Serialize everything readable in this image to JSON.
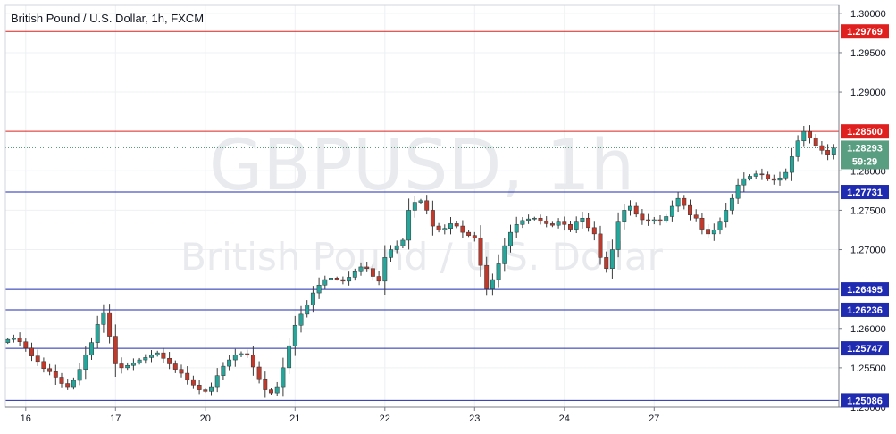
{
  "chart_data": {
    "type": "candlestick",
    "title": "British Pound / U.S. Dollar, 1h, FXCM",
    "watermark": {
      "symbol": "GBPUSD, 1h",
      "description": "British Pound / U.S. Dollar"
    },
    "ylim": [
      1.25,
      1.301
    ],
    "y_ticks": [
      "1.30000",
      "1.29500",
      "1.29000",
      "1.28000",
      "1.27500",
      "1.27000",
      "1.26000",
      "1.25500",
      "1.25000"
    ],
    "x_ticks": [
      {
        "label": "16",
        "index": 3
      },
      {
        "label": "17",
        "index": 18
      },
      {
        "label": "20",
        "index": 33
      },
      {
        "label": "21",
        "index": 48
      },
      {
        "label": "22",
        "index": 63
      },
      {
        "label": "23",
        "index": 78
      },
      {
        "label": "24",
        "index": 93
      },
      {
        "label": "27",
        "index": 108
      }
    ],
    "horizontal_levels": [
      {
        "label": "1.29769",
        "value": 1.29769,
        "color": "#e0201f"
      },
      {
        "label": "1.28500",
        "value": 1.285,
        "color": "#e0201f"
      },
      {
        "label": "1.27731",
        "value": 1.27731,
        "color": "#1f2bb0"
      },
      {
        "label": "1.26495",
        "value": 1.26495,
        "color": "#1f2bb0"
      },
      {
        "label": "1.26236",
        "value": 1.26236,
        "color": "#1f2bb0"
      },
      {
        "label": "1.25747",
        "value": 1.25747,
        "color": "#1f2bb0"
      },
      {
        "label": "1.25086",
        "value": 1.25086,
        "color": "#1f2bb0"
      }
    ],
    "current_price": {
      "label": "1.28293",
      "value": 1.28293,
      "countdown": "59:29",
      "color": "#5a9e82"
    },
    "colors": {
      "up": "#26a69a",
      "down": "#c0392b",
      "wick": "#3a3a3a",
      "grid": "#eef0f3",
      "axis": "#787b86"
    },
    "candles_close": [
      1.2586,
      1.2588,
      1.2583,
      1.2575,
      1.2565,
      1.2558,
      1.2549,
      1.2545,
      1.2538,
      1.253,
      1.2526,
      1.2534,
      1.2548,
      1.2566,
      1.2582,
      1.2605,
      1.262,
      1.259,
      1.2555,
      1.255,
      1.2553,
      1.2556,
      1.256,
      1.2563,
      1.2566,
      1.2569,
      1.2562,
      1.2555,
      1.2548,
      1.2543,
      1.2535,
      1.2528,
      1.2522,
      1.252,
      1.2526,
      1.254,
      1.2552,
      1.256,
      1.2566,
      1.2568,
      1.2566,
      1.2551,
      1.2536,
      1.2522,
      1.2518,
      1.2526,
      1.255,
      1.2578,
      1.2604,
      1.2618,
      1.263,
      1.2645,
      1.2655,
      1.2662,
      1.2664,
      1.2662,
      1.266,
      1.2665,
      1.2672,
      1.2678,
      1.2676,
      1.2666,
      1.266,
      1.269,
      1.27,
      1.2705,
      1.2712,
      1.275,
      1.276,
      1.2762,
      1.275,
      1.273,
      1.2725,
      1.2727,
      1.2733,
      1.273,
      1.2722,
      1.2718,
      1.2715,
      1.268,
      1.265,
      1.2662,
      1.2682,
      1.2705,
      1.2722,
      1.2732,
      1.2737,
      1.2739,
      1.274,
      1.2736,
      1.2733,
      1.2731,
      1.2735,
      1.2732,
      1.2726,
      1.2735,
      1.274,
      1.2728,
      1.272,
      1.269,
      1.2676,
      1.27,
      1.2735,
      1.275,
      1.2755,
      1.2745,
      1.2738,
      1.2736,
      1.2738,
      1.2736,
      1.2742,
      1.2755,
      1.2765,
      1.2756,
      1.2744,
      1.274,
      1.2726,
      1.272,
      1.2725,
      1.2735,
      1.275,
      1.2765,
      1.2782,
      1.279,
      1.2793,
      1.2796,
      1.2795,
      1.279,
      1.2788,
      1.2791,
      1.2798,
      1.2818,
      1.2838,
      1.285,
      1.2842,
      1.2832,
      1.2826,
      1.282,
      1.2829
    ]
  }
}
